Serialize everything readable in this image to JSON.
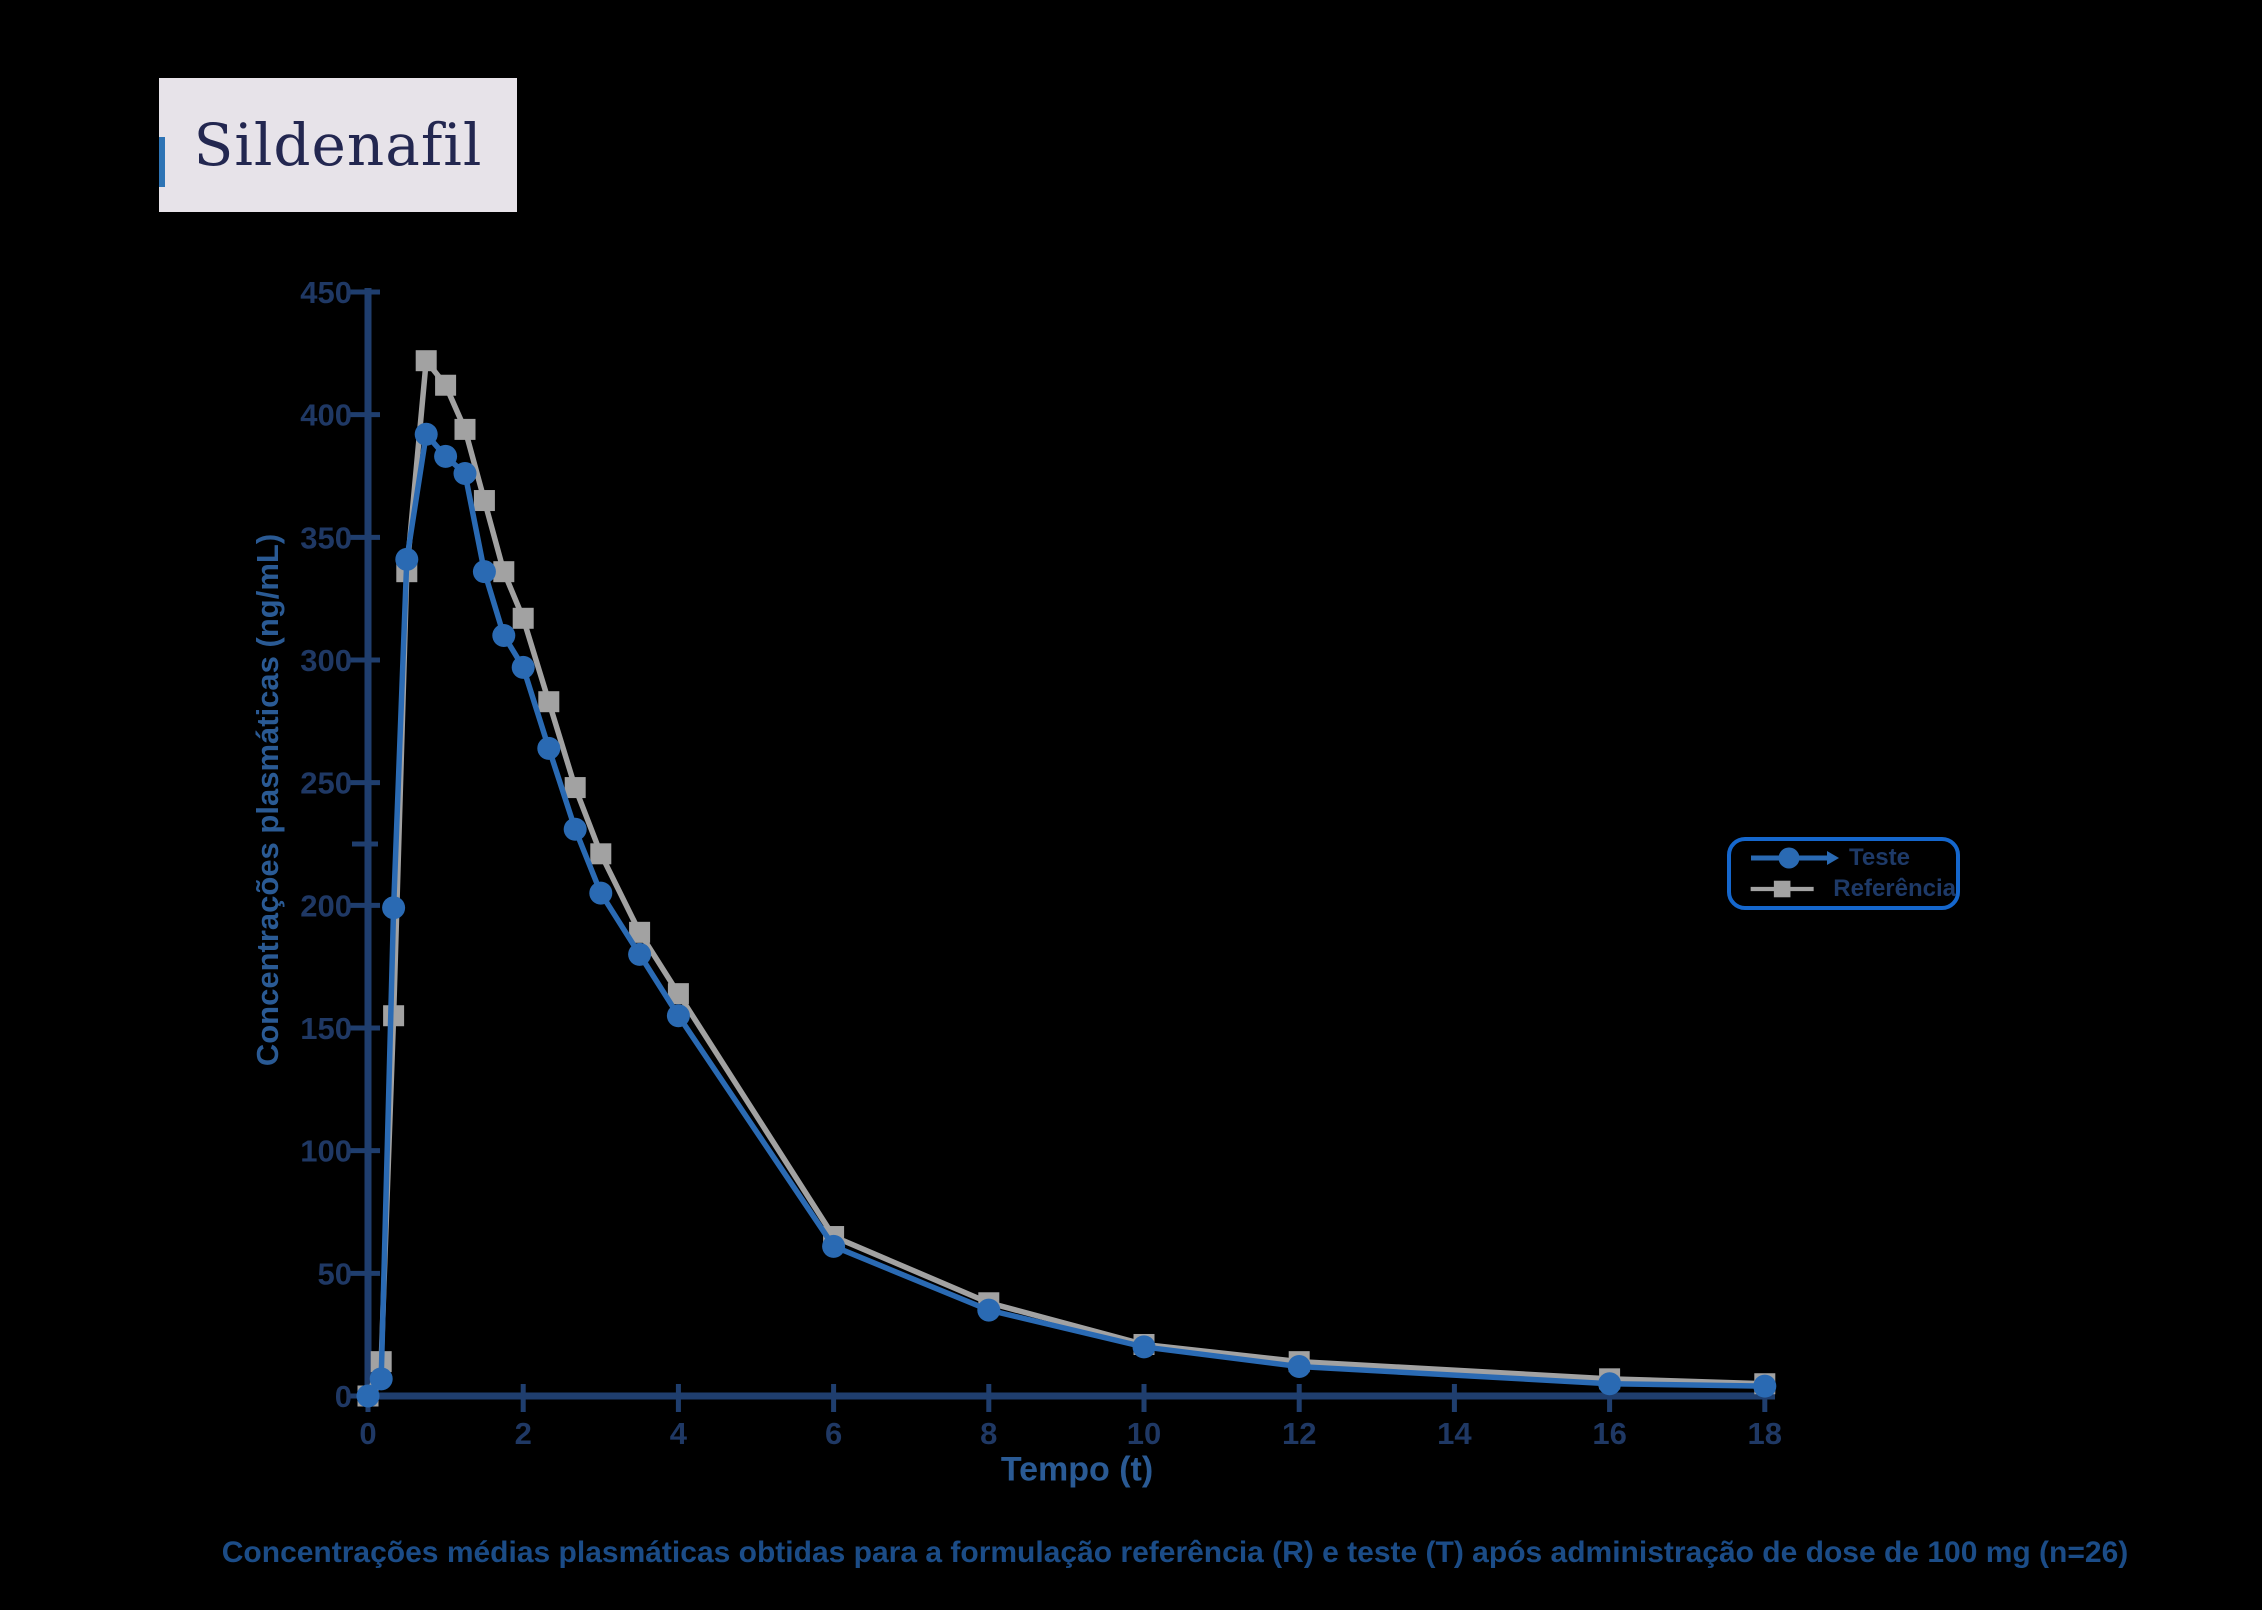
{
  "page": {
    "background": "#000000"
  },
  "title": {
    "text": "Sildenafil",
    "bg": "#e7e3e9",
    "color": "#232750",
    "accent": "#2e74b5"
  },
  "axis_labels": {
    "x": "Tempo (t)",
    "y": "Concentrações plasmáticas (ng/mL)",
    "color": "#2a5a94"
  },
  "caption": {
    "text": "Concentrações médias plasmáticas obtidas para a formulação referência (R)  e teste (T) após administração de dose de 100 mg (n=26)",
    "color": "#1b4c87"
  },
  "legend": {
    "border_color": "#1567cd",
    "text_color": "#1e3a68",
    "items": {
      "0": "Teste",
      "1": "Referência"
    }
  },
  "chart_data": {
    "type": "line",
    "title": "Sildenafil",
    "xlabel": "Tempo (t)",
    "ylabel": "Concentrações plasmáticas (ng/mL)",
    "xlim": [
      0,
      18
    ],
    "ylim": [
      0,
      450
    ],
    "x_ticks": [
      0,
      2,
      4,
      6,
      8,
      10,
      12,
      14,
      16,
      18
    ],
    "y_ticks": [
      0,
      50,
      100,
      150,
      200,
      250,
      300,
      350,
      400,
      450
    ],
    "y_minor_ticks": [
      225
    ],
    "grid": false,
    "legend_position": "right",
    "axis_color": "#1f3e6e",
    "tick_label_color": "#1f3864",
    "x": [
      0,
      0.17,
      0.33,
      0.5,
      0.75,
      1,
      1.25,
      1.5,
      1.75,
      2,
      2.33,
      2.67,
      3,
      3.5,
      4,
      6,
      8,
      10,
      12,
      16,
      18
    ],
    "series": [
      {
        "name": "Teste",
        "color": "#2a6ab3",
        "marker": "circle",
        "values": [
          0,
          7,
          199,
          341,
          392,
          383,
          376,
          336,
          310,
          297,
          264,
          231,
          205,
          180,
          155,
          61,
          35,
          20,
          12,
          5,
          4
        ]
      },
      {
        "name": "Referência",
        "color": "#a2a2a2",
        "marker": "square",
        "values": [
          0,
          14,
          155,
          336,
          422,
          412,
          394,
          365,
          336,
          317,
          283,
          248,
          221,
          189,
          164,
          65,
          38,
          21,
          14,
          7,
          5
        ]
      }
    ]
  }
}
